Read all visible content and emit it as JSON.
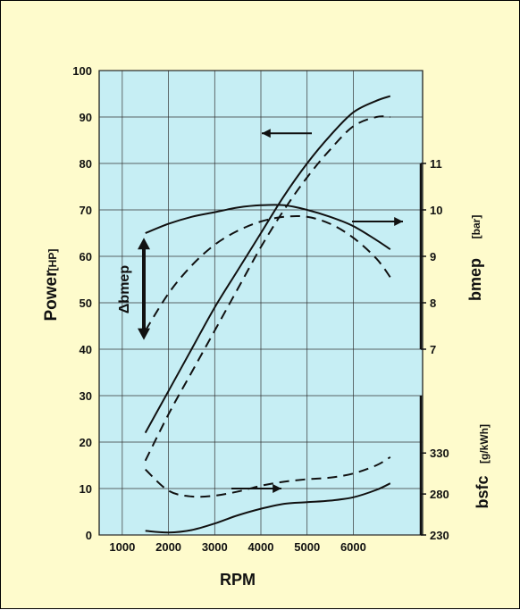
{
  "colors": {
    "background": "#fefbcc",
    "plot_fill": "#c6eef4",
    "ink": "#111111"
  },
  "chart_data": {
    "type": "line",
    "xlabel": "RPM",
    "x_ticks": [
      "1000",
      "2000",
      "3000",
      "4000",
      "5000",
      "6000"
    ],
    "xlim": [
      500,
      7500
    ],
    "grid": true,
    "left_axis": {
      "label": "Power",
      "unit": "[HP]",
      "ylim": [
        0,
        100
      ],
      "ticks": [
        "0",
        "10",
        "20",
        "30",
        "40",
        "50",
        "60",
        "70",
        "80",
        "90",
        "100"
      ]
    },
    "bmep_axis": {
      "label": "bmep",
      "unit": "[bar]",
      "ylim": [
        7,
        11
      ],
      "ticks": [
        "7",
        "8",
        "9",
        "10",
        "11"
      ]
    },
    "bsfc_axis": {
      "label": "bsfc",
      "unit": "[g/kWh]",
      "ylim": [
        230,
        400
      ],
      "ticks": [
        "230",
        "280",
        "330"
      ]
    },
    "annotation": {
      "text": "Δbmep"
    },
    "series": [
      {
        "axis": "power",
        "style": "solid",
        "x": [
          1500,
          2000,
          2500,
          3000,
          3500,
          4000,
          4500,
          5000,
          5500,
          6000,
          6500,
          6800
        ],
        "y": [
          22,
          31,
          40,
          49,
          57,
          65,
          73,
          80,
          86,
          91,
          93.5,
          94.5
        ]
      },
      {
        "axis": "power",
        "style": "dashed",
        "x": [
          1500,
          2000,
          2500,
          3000,
          3500,
          4000,
          4500,
          5000,
          5500,
          6000,
          6500,
          6800
        ],
        "y": [
          16,
          26,
          35,
          44,
          53,
          62,
          70,
          77,
          83,
          88,
          90,
          90
        ]
      },
      {
        "axis": "bmep",
        "style": "solid",
        "x": [
          1500,
          2000,
          2500,
          3000,
          3500,
          4000,
          4500,
          5000,
          5500,
          6000,
          6500,
          6800
        ],
        "y": [
          9.5,
          9.7,
          9.85,
          9.95,
          10.05,
          10.1,
          10.1,
          10.0,
          9.85,
          9.65,
          9.35,
          9.15
        ]
      },
      {
        "axis": "bmep",
        "style": "dashed",
        "x": [
          1500,
          2000,
          2500,
          3000,
          3500,
          4000,
          4500,
          5000,
          5500,
          6000,
          6500,
          6800
        ],
        "y": [
          7.4,
          8.2,
          8.8,
          9.25,
          9.55,
          9.75,
          9.85,
          9.85,
          9.7,
          9.4,
          8.95,
          8.55
        ]
      },
      {
        "axis": "bsfc",
        "style": "solid",
        "x": [
          1500,
          2000,
          2500,
          3000,
          3500,
          4000,
          4500,
          5000,
          5500,
          6000,
          6500,
          6800
        ],
        "y": [
          235,
          233,
          236,
          244,
          254,
          262,
          268,
          270,
          272,
          276,
          285,
          293
        ]
      },
      {
        "axis": "bsfc",
        "style": "dashed",
        "x": [
          1500,
          2000,
          2500,
          3000,
          3500,
          4000,
          4500,
          5000,
          5500,
          6000,
          6500,
          6800
        ],
        "y": [
          310,
          284,
          277,
          278,
          283,
          290,
          295,
          298,
          300,
          305,
          315,
          325
        ]
      }
    ]
  }
}
